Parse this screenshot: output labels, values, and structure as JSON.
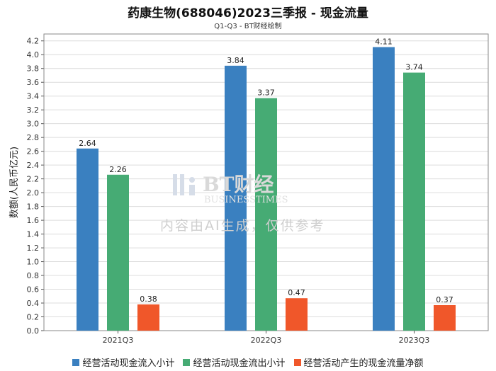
{
  "chart_data": {
    "type": "bar",
    "title": "药康生物(688046)2023三季报 - 现金流量",
    "subtitle": "Q1-Q3 - BT财经绘制",
    "ylabel": "数额(人民币亿元)",
    "xlabel": "",
    "ylim": [
      0,
      4.3
    ],
    "yticks": [
      0.0,
      0.2,
      0.4,
      0.6,
      0.8,
      1.0,
      1.2,
      1.4,
      1.6,
      1.8,
      2.0,
      2.2,
      2.4,
      2.6,
      2.8,
      3.0,
      3.2,
      3.4,
      3.6,
      3.8,
      4.0,
      4.2
    ],
    "categories": [
      "2021Q3",
      "2022Q3",
      "2023Q3"
    ],
    "series": [
      {
        "name": "经营活动现金流入小计",
        "color": "#3a80c0",
        "values": [
          2.64,
          3.84,
          4.11
        ]
      },
      {
        "name": "经营活动现金流出小计",
        "color": "#46ab74",
        "values": [
          2.26,
          3.37,
          3.74
        ]
      },
      {
        "name": "经营活动产生的现金流量净额",
        "color": "#f0572a",
        "values": [
          0.38,
          0.47,
          0.37
        ]
      }
    ],
    "legend_position": "bottom",
    "grid": true
  },
  "watermark": {
    "logo_text": "BT财经",
    "logo_subtext": "BUSINESSTIMES",
    "notice": "内容由AI生成，仅供参考"
  }
}
